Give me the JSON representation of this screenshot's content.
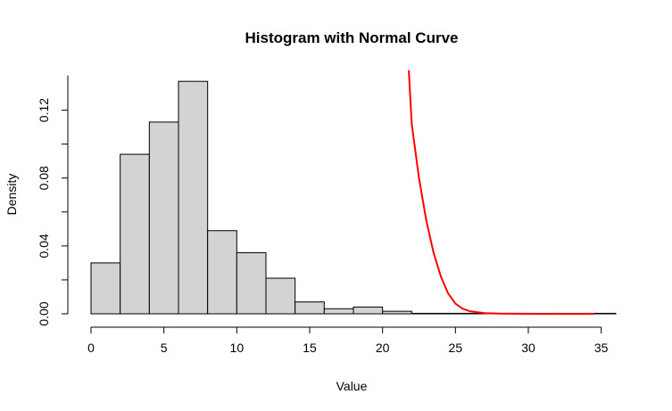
{
  "chart_data": {
    "type": "bar",
    "title": "Histogram with Normal Curve",
    "xlabel": "Value",
    "ylabel": "Density",
    "bins": [
      {
        "x0": 0,
        "x1": 2,
        "density": 0.03
      },
      {
        "x0": 2,
        "x1": 4,
        "density": 0.094
      },
      {
        "x0": 4,
        "x1": 6,
        "density": 0.113
      },
      {
        "x0": 6,
        "x1": 8,
        "density": 0.137
      },
      {
        "x0": 8,
        "x1": 10,
        "density": 0.049
      },
      {
        "x0": 10,
        "x1": 12,
        "density": 0.036
      },
      {
        "x0": 12,
        "x1": 14,
        "density": 0.021
      },
      {
        "x0": 14,
        "x1": 16,
        "density": 0.007
      },
      {
        "x0": 16,
        "x1": 18,
        "density": 0.003
      },
      {
        "x0": 18,
        "x1": 20,
        "density": 0.004
      },
      {
        "x0": 20,
        "x1": 22,
        "density": 0.0015
      },
      {
        "x0": 22,
        "x1": 24,
        "density": 0.0003
      },
      {
        "x0": 24,
        "x1": 26,
        "density": 0.0003
      },
      {
        "x0": 26,
        "x1": 28,
        "density": 0.0003
      },
      {
        "x0": 28,
        "x1": 30,
        "density": 0.0003
      },
      {
        "x0": 30,
        "x1": 32,
        "density": 0.0003
      },
      {
        "x0": 32,
        "x1": 34,
        "density": 0.0003
      },
      {
        "x0": 34,
        "x1": 36,
        "density": 0.0003
      }
    ],
    "curve": {
      "color": "#ff0000",
      "points": [
        {
          "x": 21.8,
          "y": 0.1435
        },
        {
          "x": 22.0,
          "y": 0.112
        },
        {
          "x": 22.5,
          "y": 0.08
        },
        {
          "x": 23.0,
          "y": 0.055
        },
        {
          "x": 23.5,
          "y": 0.036
        },
        {
          "x": 24.0,
          "y": 0.022
        },
        {
          "x": 24.5,
          "y": 0.012
        },
        {
          "x": 25.0,
          "y": 0.006
        },
        {
          "x": 25.5,
          "y": 0.003
        },
        {
          "x": 26.0,
          "y": 0.0015
        },
        {
          "x": 27.0,
          "y": 0.0004
        },
        {
          "x": 28.0,
          "y": 0.0001
        },
        {
          "x": 30.0,
          "y": 0.0
        },
        {
          "x": 34.5,
          "y": 0.0
        }
      ]
    },
    "xticks": [
      0,
      5,
      10,
      15,
      20,
      25,
      30,
      35
    ],
    "xtick_labels": [
      "0",
      "5",
      "10",
      "15",
      "20",
      "25",
      "30",
      "35"
    ],
    "yticks": [
      0.0,
      0.02,
      0.04,
      0.06,
      0.08,
      0.1,
      0.12
    ],
    "ytick_labels": [
      "0.00",
      "",
      "0.04",
      "",
      "0.08",
      "",
      "0.12"
    ],
    "xlim": [
      0,
      36
    ],
    "ylim": [
      0,
      0.145
    ],
    "bar_fill": "#d3d3d3"
  }
}
